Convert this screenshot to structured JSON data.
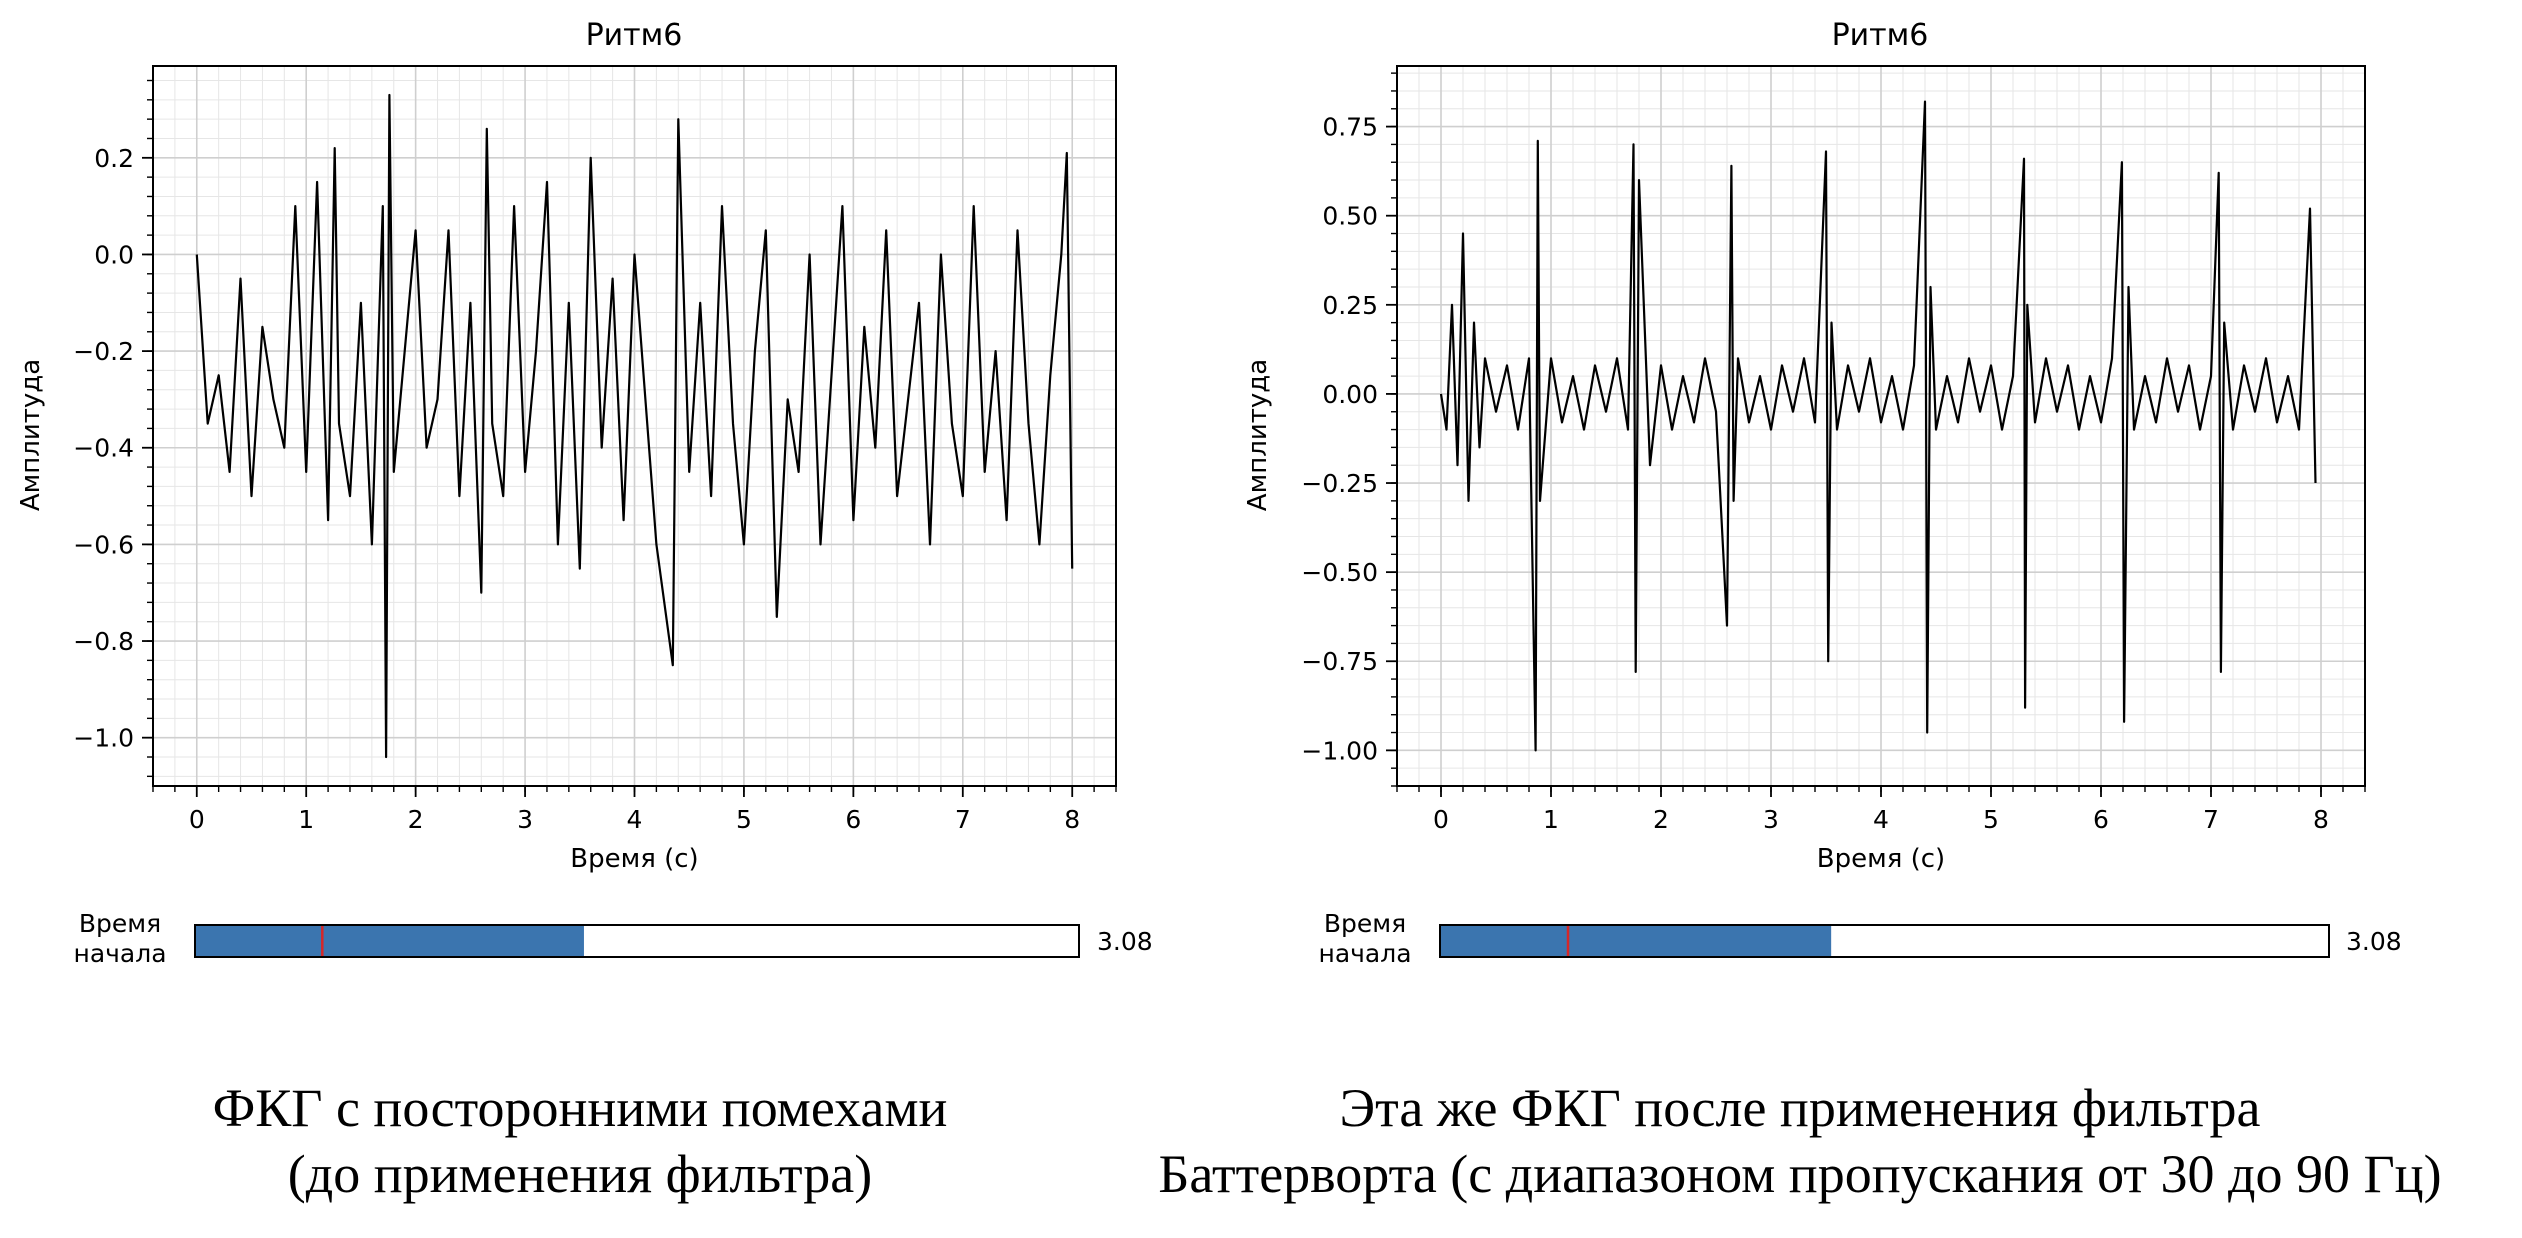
{
  "chart_data": [
    {
      "type": "line",
      "title": "Ритм6",
      "xlabel": "Время (с)",
      "ylabel": "Амплитуда",
      "xlim": [
        -0.4,
        8.4
      ],
      "ylim": [
        -1.1,
        0.39
      ],
      "xticks": [
        0,
        1,
        2,
        3,
        4,
        5,
        6,
        7,
        8
      ],
      "xtick_labels": [
        "0",
        "1",
        "2",
        "3",
        "4",
        "5",
        "6",
        "7",
        "8"
      ],
      "yticks": [
        0.2,
        0.0,
        -0.2,
        -0.4,
        -0.6,
        -0.8,
        -1.0
      ],
      "ytick_labels": [
        "0.2",
        "0.0",
        "−0.2",
        "−0.4",
        "−0.6",
        "−0.8",
        "−1.0"
      ],
      "grid": true,
      "line_color": "#000000",
      "series": [
        {
          "x": [
            0,
            0.1,
            0.2,
            0.3,
            0.4,
            0.5,
            0.6,
            0.7,
            0.8,
            0.9,
            1.0,
            1.1,
            1.2,
            1.26,
            1.3,
            1.4,
            1.5,
            1.6,
            1.7,
            1.73,
            1.76,
            1.8,
            1.9,
            2.0,
            2.1,
            2.2,
            2.3,
            2.4,
            2.5,
            2.6,
            2.65,
            2.7,
            2.8,
            2.9,
            3.0,
            3.1,
            3.2,
            3.3,
            3.4,
            3.5,
            3.6,
            3.7,
            3.8,
            3.9,
            4.0,
            4.1,
            4.2,
            4.35,
            4.4,
            4.5,
            4.6,
            4.7,
            4.8,
            4.9,
            5.0,
            5.1,
            5.2,
            5.3,
            5.4,
            5.5,
            5.6,
            5.7,
            5.8,
            5.9,
            6.0,
            6.1,
            6.2,
            6.3,
            6.4,
            6.5,
            6.6,
            6.7,
            6.8,
            6.9,
            7.0,
            7.1,
            7.2,
            7.3,
            7.4,
            7.5,
            7.6,
            7.7,
            7.8,
            7.9,
            7.95,
            8.0
          ],
          "y": [
            0.0,
            -0.35,
            -0.25,
            -0.45,
            -0.05,
            -0.5,
            -0.15,
            -0.3,
            -0.4,
            0.1,
            -0.45,
            0.15,
            -0.55,
            0.22,
            -0.35,
            -0.5,
            -0.1,
            -0.6,
            0.1,
            -1.04,
            0.33,
            -0.45,
            -0.2,
            0.05,
            -0.4,
            -0.3,
            0.05,
            -0.5,
            -0.1,
            -0.7,
            0.26,
            -0.35,
            -0.5,
            0.1,
            -0.45,
            -0.2,
            0.15,
            -0.6,
            -0.1,
            -0.65,
            0.2,
            -0.4,
            -0.05,
            -0.55,
            0.0,
            -0.3,
            -0.6,
            -0.85,
            0.28,
            -0.45,
            -0.1,
            -0.5,
            0.1,
            -0.35,
            -0.6,
            -0.2,
            0.05,
            -0.75,
            -0.3,
            -0.45,
            0.0,
            -0.6,
            -0.25,
            0.1,
            -0.55,
            -0.15,
            -0.4,
            0.05,
            -0.5,
            -0.3,
            -0.1,
            -0.6,
            0.0,
            -0.35,
            -0.5,
            0.1,
            -0.45,
            -0.2,
            -0.55,
            0.05,
            -0.35,
            -0.6,
            -0.25,
            0.0,
            0.21,
            -0.65
          ]
        }
      ],
      "slider": {
        "label_line1": "Время",
        "label_line2": "начала",
        "value_text": "3.08",
        "fill_fraction": 0.44,
        "marker_fraction": 0.144,
        "fill_color": "#3b75af",
        "marker_color": "#d62728"
      }
    },
    {
      "type": "line",
      "title": "Ритм6",
      "xlabel": "Время (с)",
      "ylabel": "Амплитуда",
      "xlim": [
        -0.4,
        8.4
      ],
      "ylim": [
        -1.1,
        0.92
      ],
      "xticks": [
        0,
        1,
        2,
        3,
        4,
        5,
        6,
        7,
        8
      ],
      "xtick_labels": [
        "0",
        "1",
        "2",
        "3",
        "4",
        "5",
        "6",
        "7",
        "8"
      ],
      "yticks": [
        0.75,
        0.5,
        0.25,
        0.0,
        -0.25,
        -0.5,
        -0.75,
        -1.0
      ],
      "ytick_labels": [
        "0.75",
        "0.50",
        "0.25",
        "0.00",
        "−0.25",
        "−0.50",
        "−0.75",
        "−1.00"
      ],
      "grid": true,
      "line_color": "#000000",
      "series": [
        {
          "x": [
            0,
            0.05,
            0.1,
            0.15,
            0.2,
            0.25,
            0.3,
            0.35,
            0.4,
            0.5,
            0.6,
            0.7,
            0.8,
            0.86,
            0.88,
            0.9,
            1.0,
            1.1,
            1.2,
            1.3,
            1.4,
            1.5,
            1.6,
            1.7,
            1.75,
            1.77,
            1.8,
            1.9,
            2.0,
            2.1,
            2.2,
            2.3,
            2.4,
            2.5,
            2.6,
            2.64,
            2.66,
            2.7,
            2.8,
            2.9,
            3.0,
            3.1,
            3.2,
            3.3,
            3.4,
            3.5,
            3.52,
            3.55,
            3.6,
            3.7,
            3.8,
            3.9,
            4.0,
            4.1,
            4.2,
            4.3,
            4.4,
            4.42,
            4.45,
            4.5,
            4.6,
            4.7,
            4.8,
            4.9,
            5.0,
            5.1,
            5.2,
            5.3,
            5.31,
            5.33,
            5.4,
            5.5,
            5.6,
            5.7,
            5.8,
            5.9,
            6.0,
            6.1,
            6.19,
            6.21,
            6.25,
            6.3,
            6.4,
            6.5,
            6.6,
            6.7,
            6.8,
            6.9,
            7.0,
            7.07,
            7.09,
            7.12,
            7.2,
            7.3,
            7.4,
            7.5,
            7.6,
            7.7,
            7.8,
            7.9,
            7.95
          ],
          "y": [
            0.0,
            -0.1,
            0.25,
            -0.2,
            0.45,
            -0.3,
            0.2,
            -0.15,
            0.1,
            -0.05,
            0.08,
            -0.1,
            0.1,
            -1.0,
            0.71,
            -0.3,
            0.1,
            -0.08,
            0.05,
            -0.1,
            0.08,
            -0.05,
            0.1,
            -0.1,
            0.7,
            -0.78,
            0.6,
            -0.2,
            0.08,
            -0.1,
            0.05,
            -0.08,
            0.1,
            -0.05,
            -0.65,
            0.64,
            -0.3,
            0.1,
            -0.08,
            0.05,
            -0.1,
            0.08,
            -0.05,
            0.1,
            -0.08,
            0.68,
            -0.75,
            0.2,
            -0.1,
            0.08,
            -0.05,
            0.1,
            -0.08,
            0.05,
            -0.1,
            0.08,
            0.82,
            -0.95,
            0.3,
            -0.1,
            0.05,
            -0.08,
            0.1,
            -0.05,
            0.08,
            -0.1,
            0.05,
            0.66,
            -0.88,
            0.25,
            -0.08,
            0.1,
            -0.05,
            0.08,
            -0.1,
            0.05,
            -0.08,
            0.1,
            0.65,
            -0.92,
            0.3,
            -0.1,
            0.05,
            -0.08,
            0.1,
            -0.05,
            0.08,
            -0.1,
            0.05,
            0.62,
            -0.78,
            0.2,
            -0.1,
            0.08,
            -0.05,
            0.1,
            -0.08,
            0.05,
            -0.1,
            0.52,
            -0.25
          ]
        }
      ],
      "slider": {
        "label_line1": "Время",
        "label_line2": "начала",
        "value_text": "3.08",
        "fill_fraction": 0.44,
        "marker_fraction": 0.144,
        "fill_color": "#3b75af",
        "marker_color": "#d62728"
      }
    }
  ],
  "captions": {
    "left": {
      "line1": "ФКГ с посторонними помехами",
      "line2": "(до применения фильтра)"
    },
    "right": {
      "line1": "Эта же ФКГ после применения фильтра",
      "line2": "Баттерворта (с диапазоном пропускания от 30 до 90 Гц)"
    }
  }
}
